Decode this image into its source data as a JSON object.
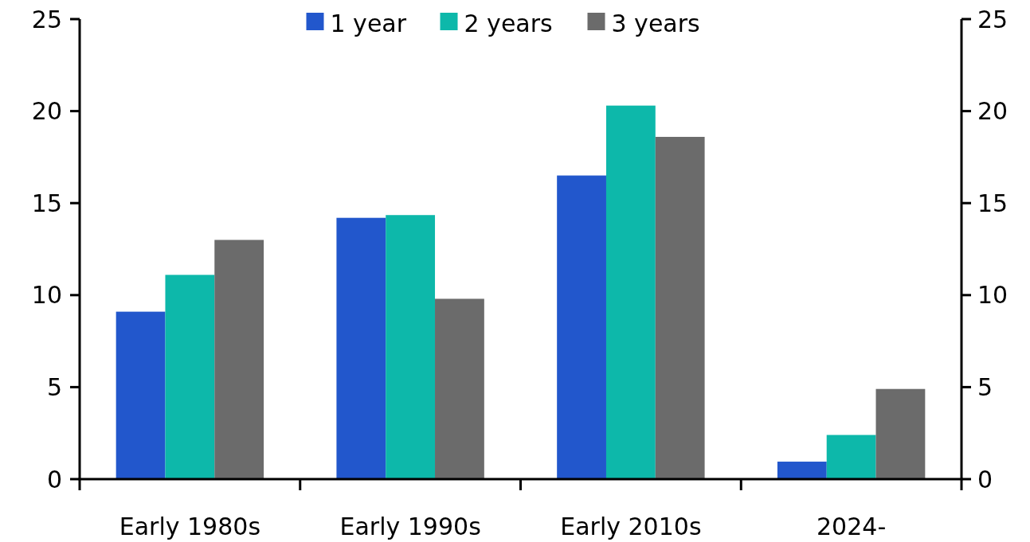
{
  "chart_data": {
    "type": "bar",
    "categories": [
      "Early 1980s",
      "Early 1990s",
      "Early 2010s",
      "2024-"
    ],
    "series": [
      {
        "name": "1 year",
        "color": "#2257cc",
        "values": [
          9.1,
          14.2,
          16.5,
          0.95
        ]
      },
      {
        "name": "2 years",
        "color": "#0db8aa",
        "values": [
          11.1,
          14.35,
          20.3,
          2.4
        ]
      },
      {
        "name": "3 years",
        "color": "#6b6b6b",
        "values": [
          13.0,
          9.8,
          18.6,
          4.9
        ]
      }
    ],
    "ylim": [
      0,
      25
    ],
    "yticks": [
      0,
      5,
      10,
      15,
      20,
      25
    ],
    "y2lim": [
      0,
      25
    ],
    "y2ticks": [
      0,
      5,
      10,
      15,
      20,
      25
    ],
    "grid": false,
    "legend": "top"
  }
}
